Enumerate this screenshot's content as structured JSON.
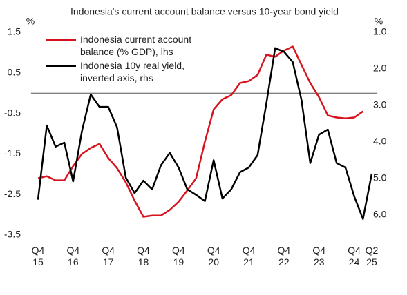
{
  "chart_data": {
    "type": "line",
    "title": "Indonesia's current account balance versus 10-year bond yield",
    "y_unit_label": "%",
    "y2_unit_label": "%",
    "categories": [
      "Q4 15",
      null,
      null,
      null,
      "Q4 16",
      null,
      null,
      null,
      "Q4 17",
      null,
      null,
      null,
      "Q4 18",
      null,
      null,
      null,
      "Q4 19",
      null,
      null,
      null,
      "Q4 20",
      null,
      null,
      null,
      "Q4 21",
      null,
      null,
      null,
      "Q4 22",
      null,
      null,
      null,
      "Q4 23",
      null,
      null,
      null,
      "Q4 24",
      null,
      "Q2 25"
    ],
    "ylim": [
      -3.5,
      1.5
    ],
    "yticks": [
      -3.5,
      -2.5,
      -1.5,
      -0.5,
      0.5,
      1.5
    ],
    "y2lim": [
      1.0,
      6.55
    ],
    "y2_inverted": true,
    "y2ticks": [
      {
        "value": 1.0,
        "label": "1.0"
      },
      {
        "value": 2.0,
        "label": "2.0"
      },
      {
        "value": 3.0,
        "label": "3.0"
      },
      {
        "value": 4.0,
        "label": "4.0"
      },
      {
        "value": 5.0,
        "label": "5.0"
      },
      {
        "value": 6.0,
        "label": "6.0"
      }
    ],
    "zero_line": true,
    "series": [
      {
        "name": "Indonesia current account balance (% GDP), lhs",
        "color": "#d7141e",
        "axis": "y",
        "values": [
          -2.1,
          -2.05,
          -2.15,
          -2.15,
          -1.8,
          -1.5,
          -1.35,
          -1.25,
          -1.6,
          -1.85,
          -2.2,
          -2.65,
          -3.05,
          -3.02,
          -3.02,
          -2.88,
          -2.68,
          -2.4,
          -2.1,
          -1.2,
          -0.4,
          -0.15,
          -0.05,
          0.25,
          0.3,
          0.45,
          0.95,
          0.9,
          1.05,
          1.15,
          0.7,
          0.25,
          -0.1,
          -0.55,
          -0.6,
          -0.62,
          -0.6,
          -0.45,
          null
        ]
      },
      {
        "name": "Indonesia 10y real yield, inverted axis, rhs",
        "color": "#000000",
        "axis": "y2",
        "values": [
          5.58,
          3.55,
          4.13,
          4.02,
          5.08,
          3.7,
          2.7,
          3.04,
          3.04,
          3.6,
          4.98,
          5.4,
          5.06,
          5.3,
          4.64,
          4.3,
          4.7,
          5.3,
          5.45,
          5.62,
          4.5,
          5.55,
          5.3,
          4.83,
          4.7,
          4.36,
          2.94,
          1.43,
          1.53,
          1.81,
          2.85,
          4.58,
          3.8,
          3.66,
          4.58,
          4.7,
          5.49,
          6.11,
          4.87
        ]
      }
    ]
  }
}
